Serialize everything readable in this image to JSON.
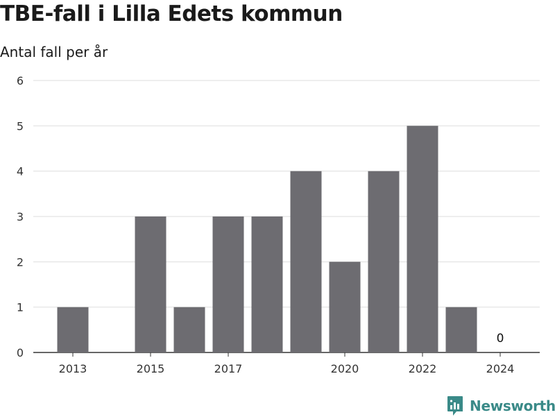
{
  "chart_data": {
    "type": "bar",
    "title": "TBE-fall i Lilla Edets kommun",
    "subtitle": "Antal fall per år",
    "categories": [
      "2013",
      "2014",
      "2015",
      "2016",
      "2017",
      "2018",
      "2019",
      "2020",
      "2021",
      "2022",
      "2023",
      "2024"
    ],
    "x_tick_labels": [
      "2013",
      "2015",
      "2017",
      "2020",
      "2022",
      "2024"
    ],
    "values": [
      1,
      0,
      3,
      1,
      3,
      3,
      4,
      2,
      4,
      5,
      1,
      0
    ],
    "data_labels": [
      {
        "category": "2024",
        "text": "0"
      }
    ],
    "ylim": [
      0,
      6
    ],
    "yticks": [
      0,
      1,
      2,
      3,
      4,
      5,
      6
    ],
    "grid": true,
    "bar_color": "#6d6c71"
  },
  "branding": {
    "name": "Newsworthy",
    "color": "#3a8a88"
  }
}
